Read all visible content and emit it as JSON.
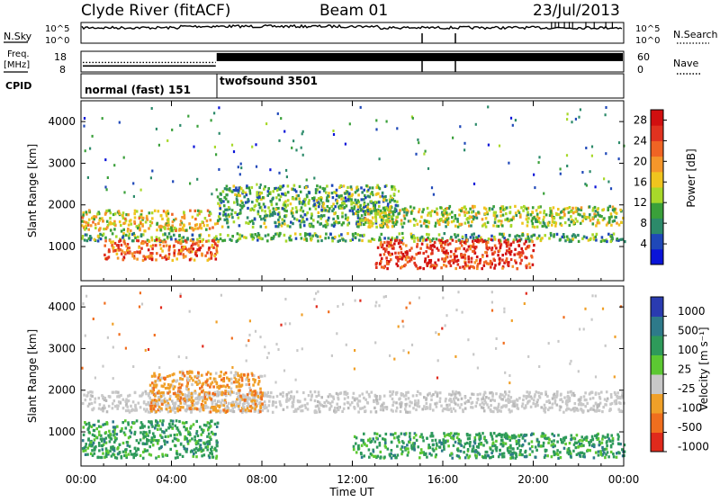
{
  "header": {
    "site": "Clyde River (fitACF)",
    "beam": "Beam 01",
    "date": "23/Jul/2013"
  },
  "top_panels": {
    "nsky_label": "N.Sky",
    "nsky_ticks": [
      "10^5",
      "10^0"
    ],
    "nsearch_label": "N.Search",
    "nsearch_ticks": [
      "10^5",
      "10^0"
    ],
    "freq_label": "Freq.",
    "freq_unit": "[MHz]",
    "freq_ticks": [
      "18",
      "8"
    ],
    "nave_label": "Nave",
    "nave_ticks": [
      "60",
      "0"
    ],
    "cpid_label": "CPID",
    "cpid_segments": [
      {
        "name": "normal (fast) 151",
        "start_hour": 0,
        "end_hour": 6
      },
      {
        "name": "twofsound 3501",
        "start_hour": 6,
        "end_hour": 24
      }
    ],
    "freq_mhz": 10.5,
    "freq_dotted_mhz": 12.5,
    "nave_level": 16,
    "nsky_level": 10000
  },
  "chart_data": [
    {
      "type": "heatmap",
      "panel": "power",
      "ylabel": "Slant Range [km]",
      "yticks": [
        "1000",
        "2000",
        "3000",
        "4000"
      ],
      "ylim": [
        180,
        4500
      ],
      "xlim": [
        0,
        24
      ],
      "colorbar": {
        "label": "Power [dB]",
        "ticks": [
          "4",
          "8",
          "12",
          "16",
          "20",
          "24",
          "28"
        ],
        "range": [
          0,
          30
        ],
        "colors": [
          "#0a14d8",
          "#1f48b8",
          "#2c8a6a",
          "#3aa03a",
          "#a8d82a",
          "#f0c41e",
          "#f5962a",
          "#f06424",
          "#e03220",
          "#d10f10"
        ]
      },
      "features": [
        {
          "t0": 0.0,
          "t1": 6.0,
          "r0": 1400,
          "r1": 1900,
          "value": 14
        },
        {
          "t0": 0.0,
          "t1": 24.0,
          "r0": 1150,
          "r1": 1350,
          "value": 8
        },
        {
          "t0": 1.0,
          "t1": 6.0,
          "r0": 700,
          "r1": 1200,
          "value": 22
        },
        {
          "t0": 6.0,
          "t1": 14.0,
          "r0": 1500,
          "r1": 2500,
          "value": 10
        },
        {
          "t0": 12.0,
          "t1": 24.0,
          "r0": 1500,
          "r1": 2000,
          "value": 12
        },
        {
          "t0": 13.0,
          "t1": 20.0,
          "r0": 500,
          "r1": 1200,
          "value": 24
        }
      ]
    },
    {
      "type": "heatmap",
      "panel": "velocity",
      "ylabel": "Slant Range [km]",
      "xlabel": "Time UT",
      "xticks": [
        "00:00",
        "04:00",
        "08:00",
        "12:00",
        "16:00",
        "20:00",
        "00:00"
      ],
      "yticks": [
        "1000",
        "2000",
        "3000",
        "4000"
      ],
      "ylim": [
        180,
        4500
      ],
      "xlim": [
        0,
        24
      ],
      "colorbar": {
        "label": "Velocity [m s⁻¹]",
        "ticks": [
          "1000",
          "500",
          "100",
          "25",
          "-25",
          "-100",
          "-500",
          "-1000"
        ],
        "colors": [
          "#2a3bb0",
          "#2e7a8a",
          "#2e9a5a",
          "#5cc832",
          "#c8c8c8",
          "#f0a028",
          "#f06e1e",
          "#e02a1c"
        ]
      },
      "features": [
        {
          "t0": 0.0,
          "t1": 24.0,
          "r0": 1500,
          "r1": 2000,
          "value": "ground scatter (grey)"
        },
        {
          "t0": 0.0,
          "t1": 6.0,
          "r0": 400,
          "r1": 1300,
          "value": 300
        },
        {
          "t0": 3.0,
          "t1": 8.0,
          "r0": 1500,
          "r1": 2500,
          "value": -300
        },
        {
          "t0": 12.0,
          "t1": 24.0,
          "r0": 400,
          "r1": 1000,
          "value": 150
        }
      ]
    }
  ]
}
